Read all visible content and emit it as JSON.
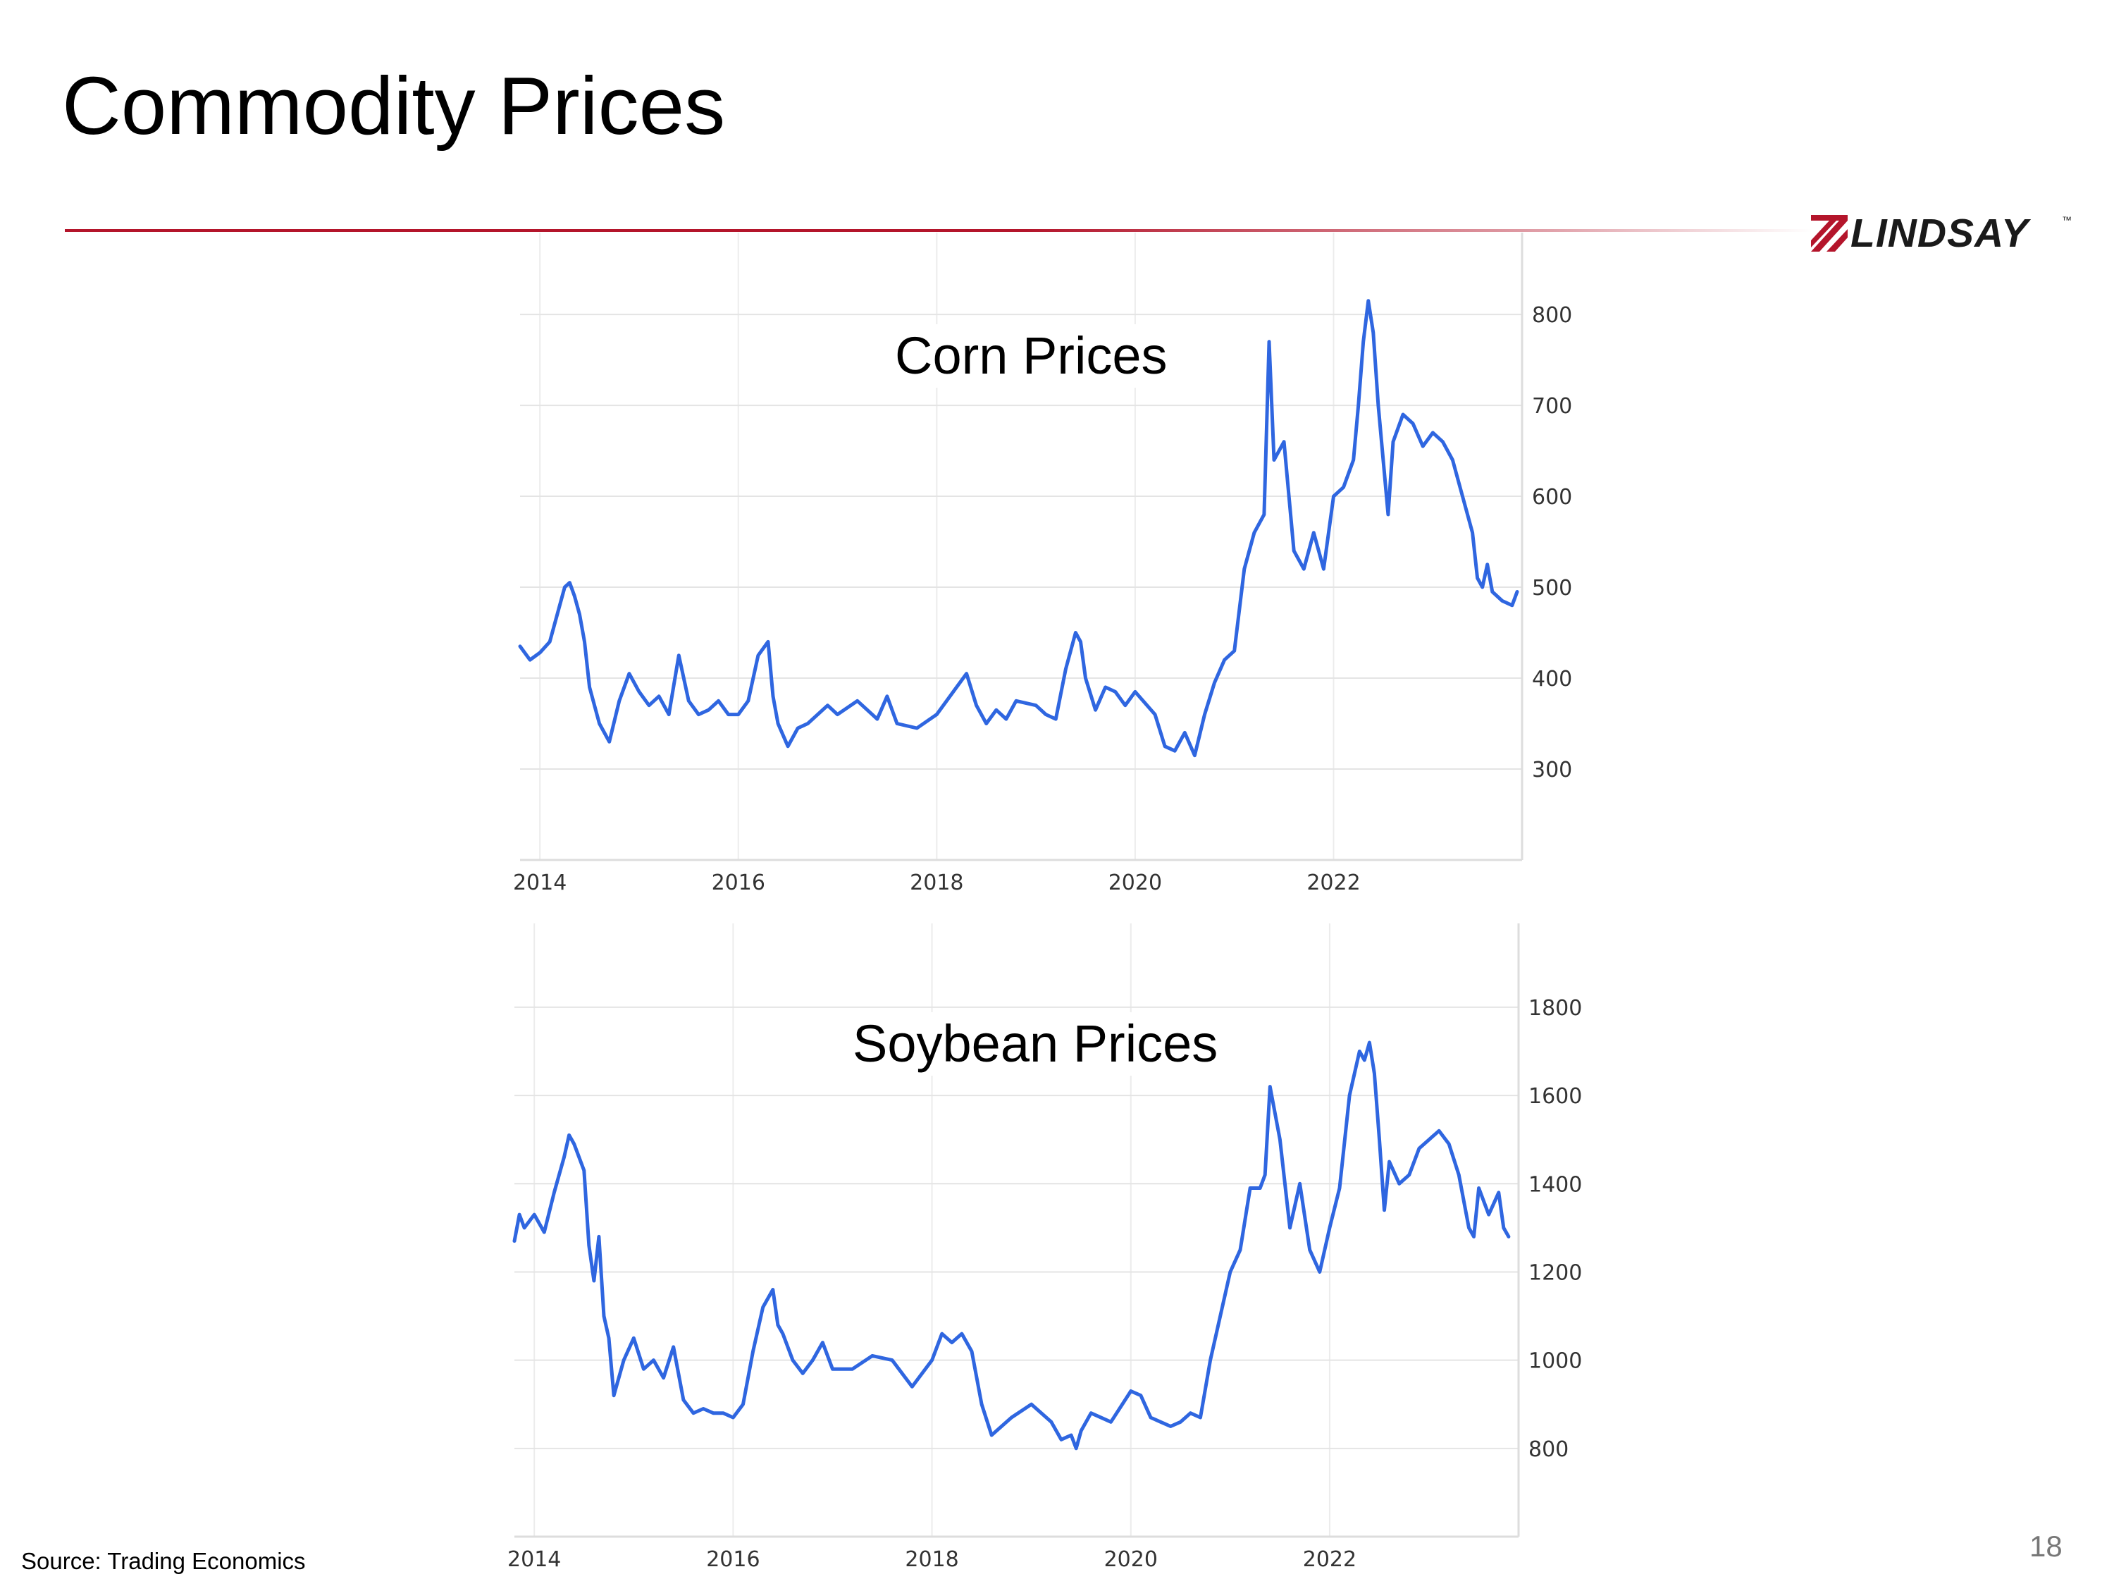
{
  "slide": {
    "title": "Commodity Prices",
    "source": "Source: Trading Economics",
    "page_number": "18",
    "logo_text": "LINDSAY",
    "logo_tm": "™",
    "accent_color": "#b4152b"
  },
  "chart_data": [
    {
      "type": "line",
      "title": "Corn Prices",
      "xlabel": "",
      "ylabel": "",
      "x_ticks": [
        "2014",
        "2016",
        "2018",
        "2020",
        "2022"
      ],
      "x_tick_values": [
        2014,
        2016,
        2018,
        2020,
        2022
      ],
      "y_ticks": [
        300,
        400,
        500,
        600,
        700,
        800
      ],
      "xlim": [
        2013.8,
        2023.9
      ],
      "ylim": [
        200,
        890
      ],
      "grid": true,
      "line_color": "#2f66e0",
      "series": [
        {
          "x": [
            2013.8,
            2013.9,
            2014.0,
            2014.1,
            2014.2,
            2014.25,
            2014.3,
            2014.35,
            2014.4,
            2014.45,
            2014.5,
            2014.6,
            2014.7,
            2014.8,
            2014.9,
            2015.0,
            2015.1,
            2015.2,
            2015.3,
            2015.4,
            2015.5,
            2015.6,
            2015.7,
            2015.8,
            2015.9,
            2016.0,
            2016.1,
            2016.2,
            2016.3,
            2016.35,
            2016.4,
            2016.5,
            2016.6,
            2016.7,
            2016.8,
            2016.9,
            2017.0,
            2017.2,
            2017.4,
            2017.5,
            2017.6,
            2017.8,
            2018.0,
            2018.2,
            2018.3,
            2018.4,
            2018.5,
            2018.6,
            2018.7,
            2018.8,
            2019.0,
            2019.1,
            2019.2,
            2019.3,
            2019.4,
            2019.45,
            2019.5,
            2019.6,
            2019.7,
            2019.8,
            2019.9,
            2020.0,
            2020.2,
            2020.3,
            2020.4,
            2020.5,
            2020.6,
            2020.7,
            2020.8,
            2020.9,
            2021.0,
            2021.1,
            2021.2,
            2021.25,
            2021.3,
            2021.35,
            2021.4,
            2021.5,
            2021.6,
            2021.7,
            2021.8,
            2021.9,
            2022.0,
            2022.1,
            2022.2,
            2022.25,
            2022.3,
            2022.35,
            2022.4,
            2022.45,
            2022.5,
            2022.55,
            2022.6,
            2022.7,
            2022.8,
            2022.9,
            2023.0,
            2023.1,
            2023.2,
            2023.3,
            2023.4,
            2023.45,
            2023.5,
            2023.55,
            2023.6,
            2023.7,
            2023.8,
            2023.85
          ],
          "y": [
            435,
            420,
            428,
            440,
            480,
            500,
            505,
            490,
            470,
            440,
            390,
            350,
            330,
            375,
            405,
            385,
            370,
            380,
            360,
            425,
            375,
            360,
            365,
            375,
            360,
            360,
            375,
            425,
            440,
            380,
            350,
            325,
            345,
            350,
            360,
            370,
            360,
            375,
            355,
            380,
            350,
            345,
            360,
            390,
            405,
            370,
            350,
            365,
            355,
            375,
            370,
            360,
            355,
            410,
            450,
            440,
            400,
            365,
            390,
            385,
            370,
            385,
            360,
            325,
            320,
            340,
            315,
            360,
            395,
            420,
            430,
            520,
            560,
            570,
            580,
            770,
            640,
            660,
            540,
            520,
            560,
            520,
            600,
            610,
            640,
            700,
            770,
            815,
            780,
            700,
            640,
            580,
            660,
            690,
            680,
            655,
            670,
            660,
            640,
            600,
            560,
            510,
            500,
            525,
            495,
            485,
            480,
            495
          ],
          "name": ""
        }
      ]
    },
    {
      "type": "line",
      "title": "Soybean Prices",
      "xlabel": "",
      "ylabel": "",
      "x_ticks": [
        "2014",
        "2016",
        "2018",
        "2020",
        "2022"
      ],
      "x_tick_values": [
        2014,
        2016,
        2018,
        2020,
        2022
      ],
      "y_ticks": [
        800,
        1000,
        1200,
        1400,
        1600,
        1800
      ],
      "xlim": [
        2013.8,
        2023.9
      ],
      "ylim": [
        600,
        1990
      ],
      "grid": true,
      "line_color": "#2f66e0",
      "series": [
        {
          "x": [
            2013.8,
            2013.85,
            2013.9,
            2014.0,
            2014.1,
            2014.2,
            2014.3,
            2014.35,
            2014.4,
            2014.5,
            2014.55,
            2014.6,
            2014.65,
            2014.7,
            2014.75,
            2014.8,
            2014.9,
            2015.0,
            2015.1,
            2015.2,
            2015.3,
            2015.4,
            2015.5,
            2015.6,
            2015.7,
            2015.8,
            2015.9,
            2016.0,
            2016.1,
            2016.2,
            2016.3,
            2016.4,
            2016.45,
            2016.5,
            2016.6,
            2016.7,
            2016.8,
            2016.9,
            2017.0,
            2017.2,
            2017.4,
            2017.6,
            2017.8,
            2018.0,
            2018.1,
            2018.2,
            2018.3,
            2018.4,
            2018.5,
            2018.6,
            2018.8,
            2019.0,
            2019.2,
            2019.3,
            2019.4,
            2019.45,
            2019.5,
            2019.6,
            2019.8,
            2020.0,
            2020.1,
            2020.2,
            2020.3,
            2020.4,
            2020.5,
            2020.6,
            2020.7,
            2020.8,
            2020.9,
            2021.0,
            2021.1,
            2021.2,
            2021.3,
            2021.35,
            2021.4,
            2021.5,
            2021.6,
            2021.7,
            2021.8,
            2021.9,
            2022.0,
            2022.1,
            2022.2,
            2022.3,
            2022.35,
            2022.4,
            2022.45,
            2022.5,
            2022.55,
            2022.6,
            2022.7,
            2022.8,
            2022.9,
            2023.0,
            2023.1,
            2023.2,
            2023.3,
            2023.4,
            2023.45,
            2023.5,
            2023.6,
            2023.7,
            2023.75,
            2023.8
          ],
          "y": [
            1270,
            1330,
            1300,
            1330,
            1290,
            1380,
            1460,
            1510,
            1490,
            1430,
            1260,
            1180,
            1280,
            1100,
            1050,
            920,
            1000,
            1050,
            980,
            1000,
            960,
            1030,
            910,
            880,
            890,
            880,
            880,
            870,
            900,
            1020,
            1120,
            1160,
            1080,
            1060,
            1000,
            970,
            1000,
            1040,
            980,
            980,
            1010,
            1000,
            940,
            1000,
            1060,
            1040,
            1060,
            1020,
            900,
            830,
            870,
            900,
            860,
            820,
            830,
            800,
            840,
            880,
            860,
            930,
            920,
            870,
            860,
            850,
            860,
            880,
            870,
            1000,
            1100,
            1200,
            1250,
            1390,
            1390,
            1420,
            1620,
            1500,
            1300,
            1400,
            1250,
            1200,
            1300,
            1390,
            1600,
            1700,
            1680,
            1720,
            1650,
            1500,
            1340,
            1450,
            1400,
            1420,
            1480,
            1500,
            1520,
            1490,
            1420,
            1300,
            1280,
            1390,
            1330,
            1380,
            1300,
            1280
          ],
          "name": ""
        }
      ]
    }
  ]
}
